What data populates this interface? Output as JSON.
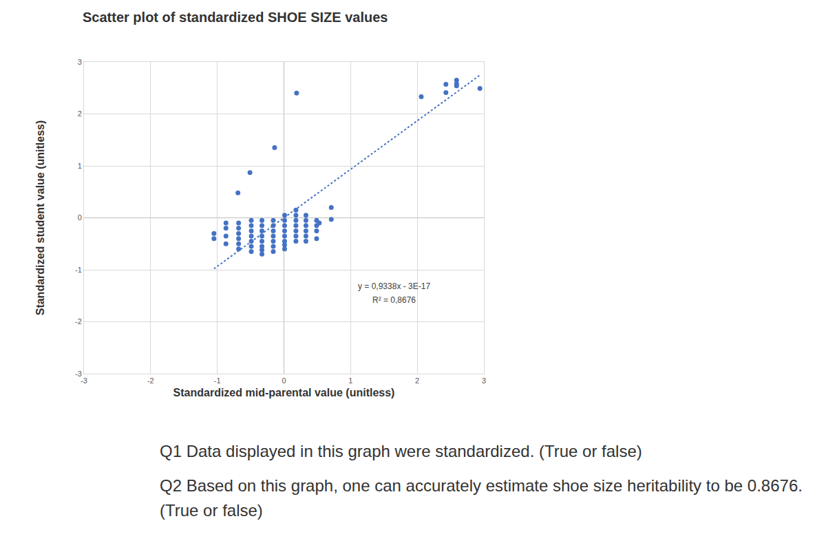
{
  "chart_data": {
    "type": "scatter",
    "title": "Scatter plot of standardized SHOE SIZE values",
    "x_label": "Standardized mid-parental value (unitless)",
    "y_label": "Standardized student value (unitless)",
    "color": "#4472c4",
    "marker": "circle",
    "x": [
      0.19,
      2.06,
      2.43,
      2.43,
      2.59,
      2.59,
      2.59,
      2.94,
      -0.14,
      -0.51,
      -0.69,
      -1.05,
      -1.05,
      -0.87,
      -0.87,
      -0.87,
      -0.87,
      -0.68,
      -0.68,
      -0.68,
      -0.68,
      -0.68,
      -0.68,
      -0.49,
      -0.49,
      -0.49,
      -0.49,
      -0.49,
      -0.49,
      -0.49,
      -0.33,
      -0.33,
      -0.33,
      -0.33,
      -0.33,
      -0.33,
      -0.33,
      -0.33,
      -0.16,
      -0.16,
      -0.16,
      -0.16,
      -0.16,
      -0.16,
      -0.16,
      0.01,
      0.01,
      0.01,
      0.01,
      0.01,
      0.01,
      0.01,
      0.01,
      0.18,
      0.18,
      0.18,
      0.18,
      0.18,
      0.18,
      0.18,
      0.33,
      0.33,
      0.33,
      0.33,
      0.33,
      0.33,
      0.49,
      0.49,
      0.49,
      0.49,
      0.53,
      0.71,
      0.71
    ],
    "y": [
      2.4,
      2.33,
      2.57,
      2.41,
      2.65,
      2.58,
      2.54,
      2.49,
      1.35,
      0.87,
      0.48,
      -0.3,
      -0.4,
      -0.1,
      -0.2,
      -0.35,
      -0.5,
      -0.1,
      -0.2,
      -0.3,
      -0.4,
      -0.5,
      -0.6,
      -0.05,
      -0.15,
      -0.25,
      -0.35,
      -0.45,
      -0.55,
      -0.65,
      -0.05,
      -0.15,
      -0.25,
      -0.35,
      -0.45,
      -0.55,
      -0.62,
      -0.7,
      -0.05,
      -0.15,
      -0.25,
      -0.35,
      -0.45,
      -0.55,
      -0.65,
      0.05,
      -0.05,
      -0.15,
      -0.25,
      -0.35,
      -0.45,
      -0.52,
      -0.6,
      0.15,
      0.05,
      -0.05,
      -0.15,
      -0.25,
      -0.35,
      -0.45,
      0.05,
      -0.05,
      -0.15,
      -0.25,
      -0.35,
      -0.45,
      -0.05,
      -0.15,
      -0.25,
      -0.4,
      -0.1,
      0.2,
      -0.03
    ],
    "trendline": {
      "x": [
        -1.05,
        2.95
      ],
      "slope": 0.9338,
      "intercept": -3e-17,
      "line_style": "dotted",
      "color": "#4472c4"
    },
    "annotations": [
      "y = 0,9338x - 3E-17",
      "R² = 0,8676"
    ],
    "xlim": [
      -3,
      3
    ],
    "ylim": [
      -3,
      3
    ],
    "xticks": [
      -3,
      -2,
      -1,
      0,
      1,
      2,
      3
    ],
    "yticks": [
      -3,
      -2,
      -1,
      0,
      1,
      2,
      3
    ],
    "grid": true
  },
  "questions": [
    "Q1 Data displayed in this graph were standardized. (True or false)",
    "Q2 Based on this graph, one can accurately estimate shoe size heritability to be 0.8676. (True or false)"
  ]
}
